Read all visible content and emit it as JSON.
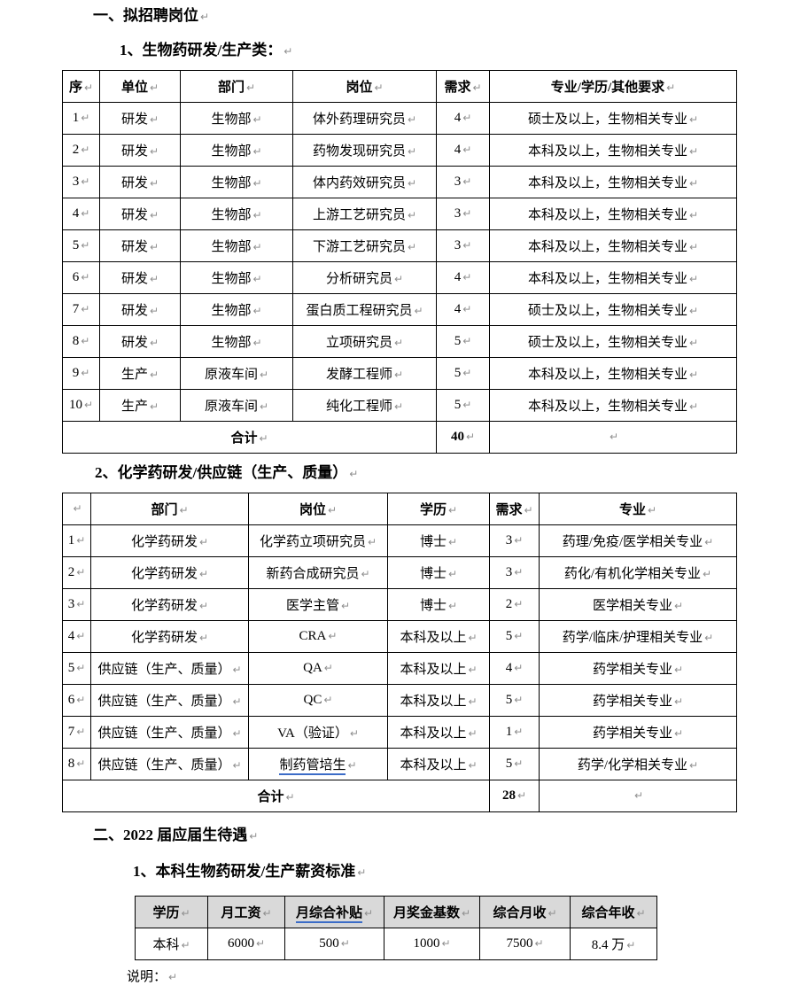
{
  "page": {
    "heading1": "一、拟招聘岗位",
    "sub1": "1、生物药研发/生产类：",
    "sub2": "2、化学药研发/供应链（生产、质量）",
    "heading2": "二、2022 届应届生待遇",
    "sub3": "1、本科生物药研发/生产薪资标准",
    "note_label": "说明：",
    "paragraph_mark": "↵"
  },
  "table1": {
    "headers": [
      "序",
      "单位",
      "部门",
      "岗位",
      "需求",
      "专业/学历/其他要求"
    ],
    "rows": [
      [
        "1",
        "研发",
        "生物部",
        "体外药理研究员",
        "4",
        "硕士及以上，生物相关专业"
      ],
      [
        "2",
        "研发",
        "生物部",
        "药物发现研究员",
        "4",
        "本科及以上，生物相关专业"
      ],
      [
        "3",
        "研发",
        "生物部",
        "体内药效研究员",
        "3",
        "本科及以上，生物相关专业"
      ],
      [
        "4",
        "研发",
        "生物部",
        "上游工艺研究员",
        "3",
        "本科及以上，生物相关专业"
      ],
      [
        "5",
        "研发",
        "生物部",
        "下游工艺研究员",
        "3",
        "本科及以上，生物相关专业"
      ],
      [
        "6",
        "研发",
        "生物部",
        "分析研究员",
        "4",
        "本科及以上，生物相关专业"
      ],
      [
        "7",
        "研发",
        "生物部",
        "蛋白质工程研究员",
        "4",
        "硕士及以上，生物相关专业"
      ],
      [
        "8",
        "研发",
        "生物部",
        "立项研究员",
        "5",
        "硕士及以上，生物相关专业"
      ],
      [
        "9",
        "生产",
        "原液车间",
        "发酵工程师",
        "5",
        "本科及以上，生物相关专业"
      ],
      [
        "10",
        "生产",
        "原液车间",
        "纯化工程师",
        "5",
        "本科及以上，生物相关专业"
      ]
    ],
    "total_label": "合计",
    "total_value": "40"
  },
  "table2": {
    "headers": [
      "",
      "部门",
      "岗位",
      "学历",
      "需求",
      "专业"
    ],
    "rows": [
      [
        "1",
        "化学药研发",
        "化学药立项研究员",
        "博士",
        "3",
        "药理/免疫/医学相关专业"
      ],
      [
        "2",
        "化学药研发",
        "新药合成研究员",
        "博士",
        "3",
        "药化/有机化学相关专业"
      ],
      [
        "3",
        "化学药研发",
        "医学主管",
        "博士",
        "2",
        "医学相关专业"
      ],
      [
        "4",
        "化学药研发",
        "CRA",
        "本科及以上",
        "5",
        "药学/临床/护理相关专业"
      ],
      [
        "5",
        "供应链（生产、质量）",
        "QA",
        "本科及以上",
        "4",
        "药学相关专业"
      ],
      [
        "6",
        "供应链（生产、质量）",
        "QC",
        "本科及以上",
        "5",
        "药学相关专业"
      ],
      [
        "7",
        "供应链（生产、质量）",
        "VA（验证）",
        "本科及以上",
        "1",
        "药学相关专业"
      ],
      [
        "8",
        "供应链（生产、质量）",
        "制药管培生",
        "本科及以上",
        "5",
        "药学/化学相关专业"
      ]
    ],
    "underlined_cell": {
      "row": 7,
      "col": 2
    },
    "total_label": "合计",
    "total_value": "28"
  },
  "table3": {
    "headers": [
      "学历",
      "月工资",
      "月综合补贴",
      "月奖金基数",
      "综合月收",
      "综合年收"
    ],
    "underlined_header_index": 2,
    "rows": [
      [
        "本科",
        "6000",
        "500",
        "1000",
        "7500",
        "8.4 万"
      ]
    ]
  },
  "colors": {
    "underline_blue": "#3b6cc7",
    "table3_header_bg": "#d9d9d9",
    "mark_gray": "#8f8f8f"
  }
}
